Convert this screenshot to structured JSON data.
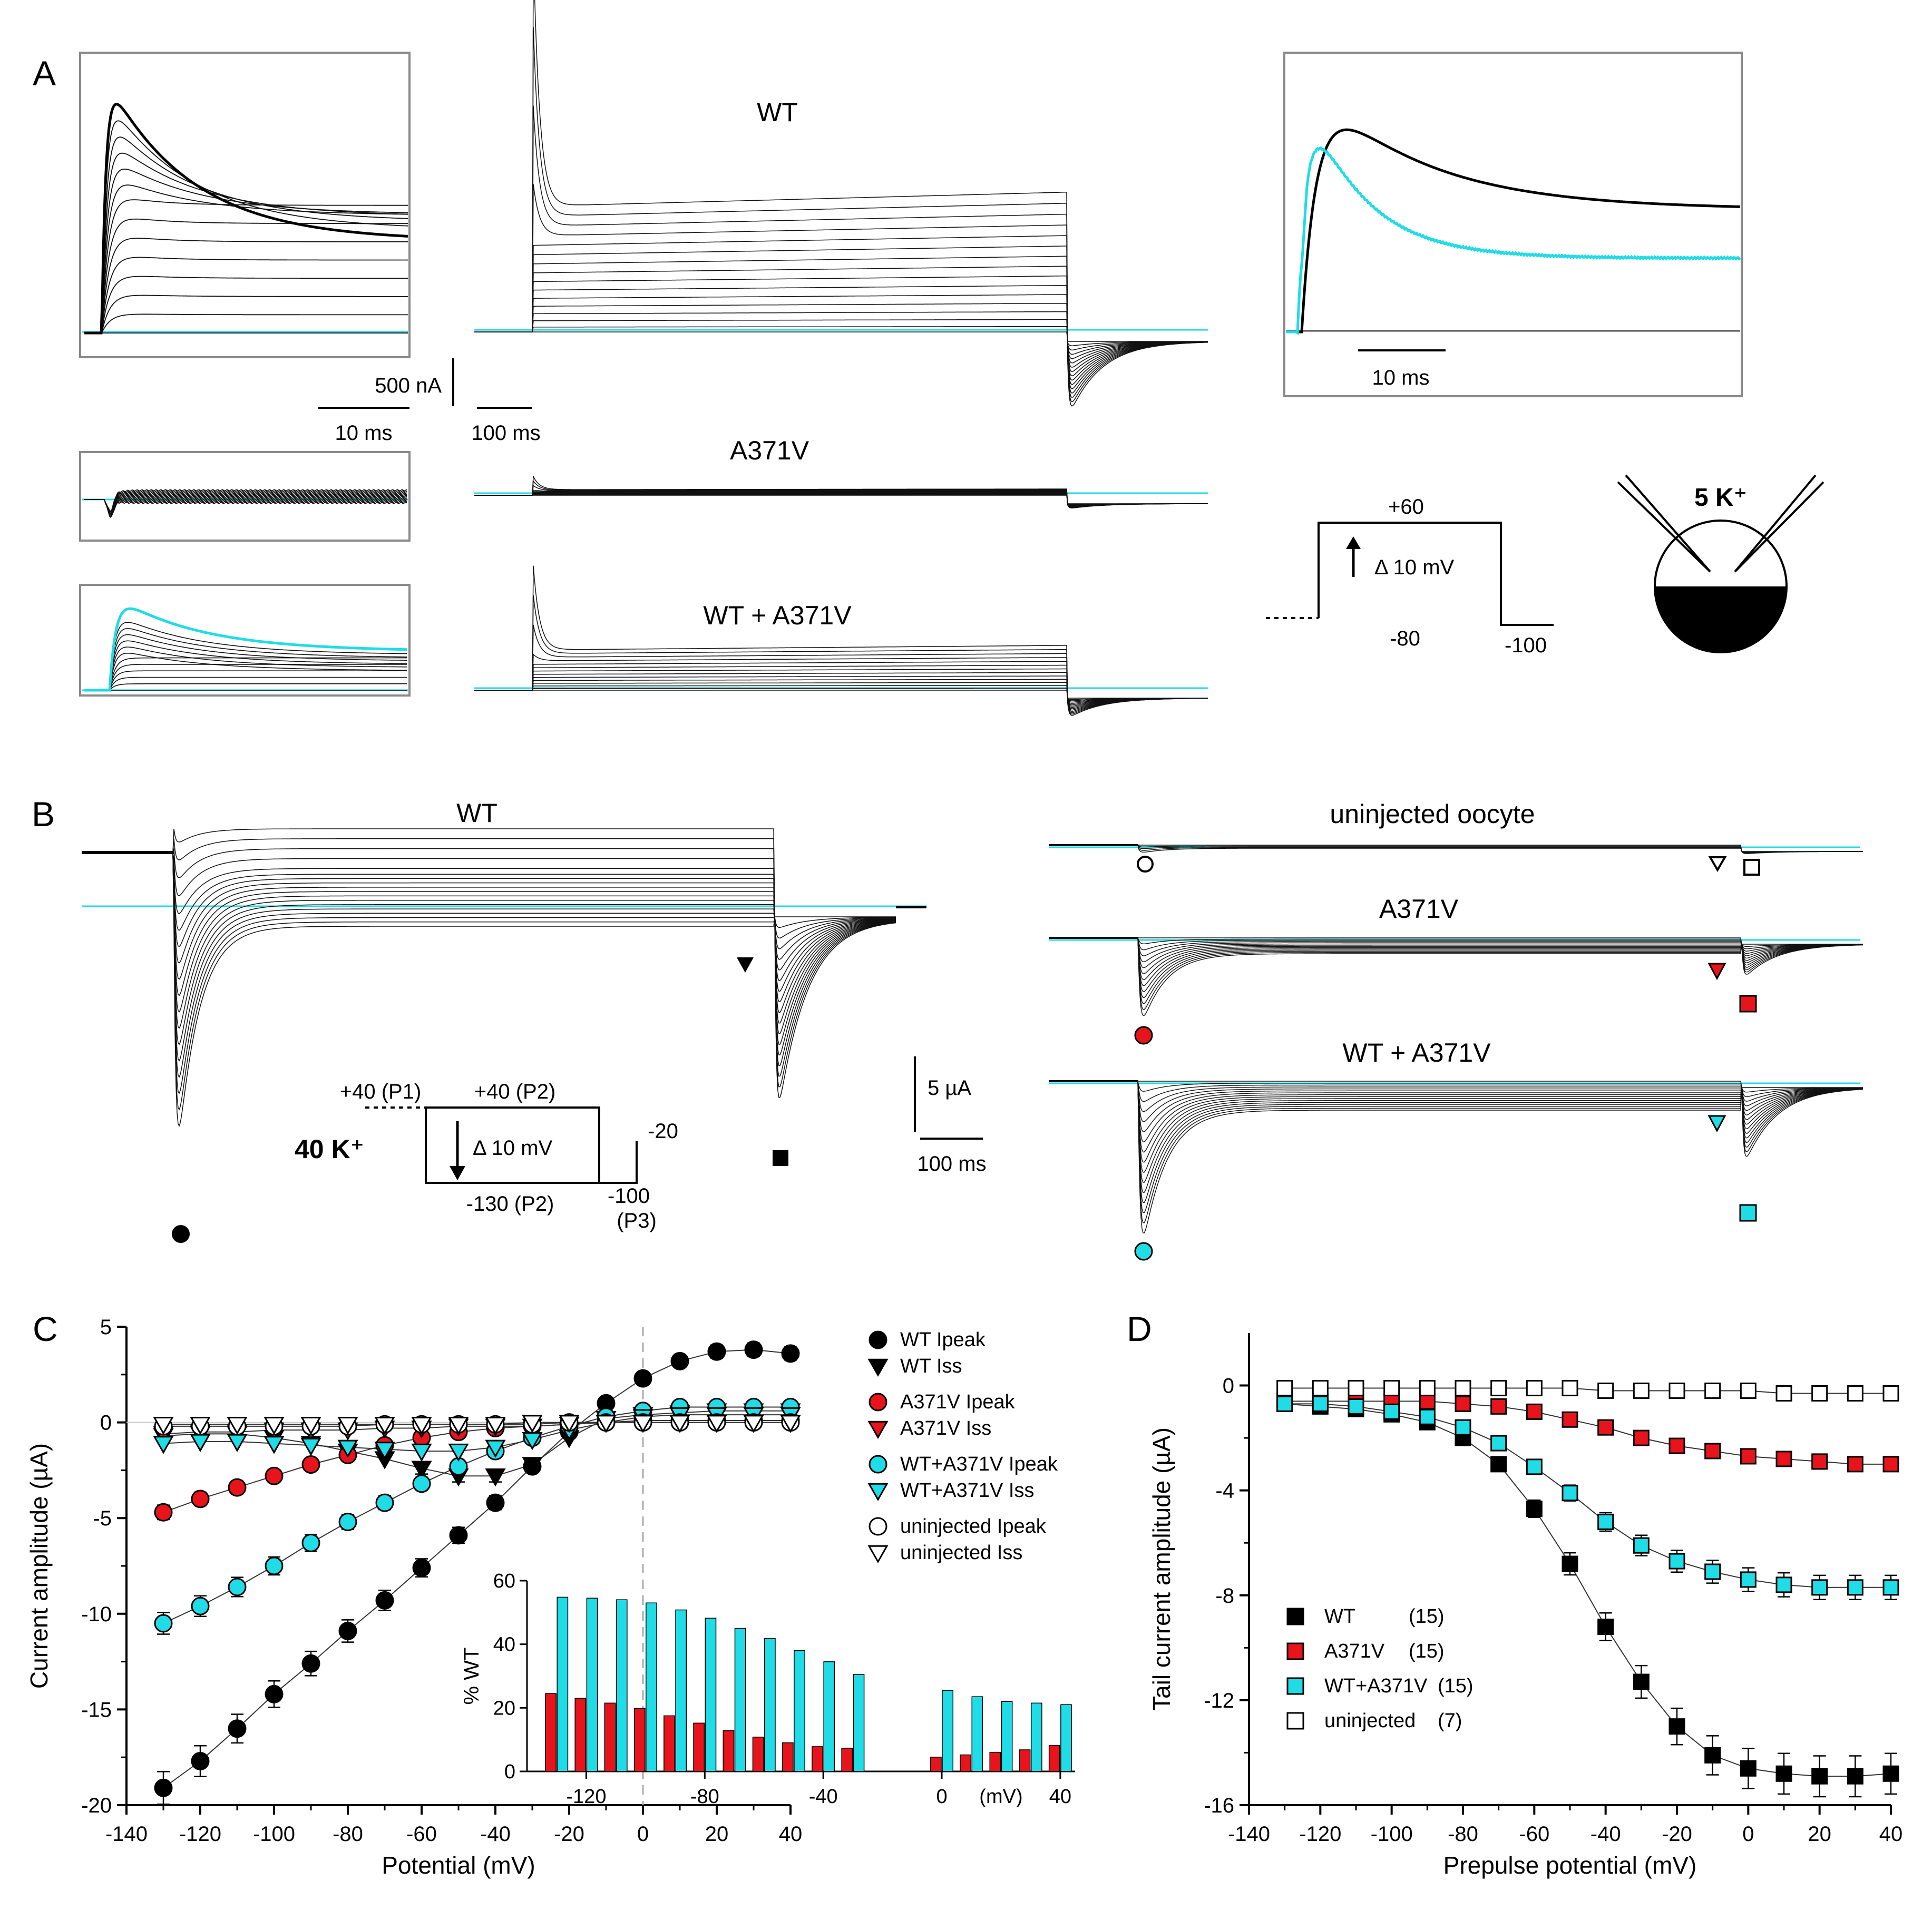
{
  "colors": {
    "wt": "#000000",
    "a371v": "#e8141b",
    "wt_a371v": "#1fdce6",
    "uninjected": "#ffffff",
    "trace": "#111111",
    "zero": "#1fdce6"
  },
  "panel_labels": {
    "a": "A",
    "b": "B",
    "c": "C",
    "d": "D"
  },
  "panel_a": {
    "title_wt": "WT",
    "title_mut": "A371V",
    "title_het": "WT + A371V",
    "scale_current": "500 nA",
    "scale_fast": "10 ms",
    "scale_slow": "100 ms",
    "inset_scale": "10 ms",
    "protocol": {
      "top": "+60",
      "step": "Δ 10 mV",
      "hold": "-80",
      "tail": "-100"
    },
    "cell_label": "5 K⁺"
  },
  "panel_b": {
    "title_wt": "WT",
    "title_uninj": "uninjected oocyte",
    "title_mut": "A371V",
    "title_het": "WT + A371V",
    "scale_current": "5 µA",
    "scale_time": "100 ms",
    "solution": "40 K⁺",
    "protocol": {
      "p1": "+40 (P1)",
      "p2_top": "+40 (P2)",
      "step": "Δ 10 mV",
      "p2_bottom": "-130 (P2)",
      "p3_top": "-20",
      "p3_bottom": "-100",
      "p3_label": "(P3)"
    }
  },
  "chart_data": [
    {
      "type": "scatter",
      "panel": "C",
      "xlabel": "Potential (mV)",
      "ylabel": "Current amplitude (µA)",
      "xlim": [
        -140,
        40
      ],
      "ylim": [
        -20,
        5
      ],
      "xticks": [
        "-140",
        "-120",
        "-100",
        "-80",
        "-60",
        "-40",
        "-20",
        "0",
        "20",
        "40"
      ],
      "yticks": [
        "5",
        "0",
        "-5",
        "-10",
        "-15",
        "-20"
      ],
      "x": [
        -130,
        -120,
        -110,
        -100,
        -90,
        -80,
        -70,
        -60,
        -50,
        -40,
        -30,
        -20,
        -10,
        0,
        10,
        20,
        30,
        40
      ],
      "series": [
        {
          "name": "WT Ipeak",
          "marker": "circle",
          "color": "#000000",
          "values": [
            -19.1,
            -17.7,
            -16.0,
            -14.2,
            -12.6,
            -10.9,
            -9.3,
            -7.6,
            -5.9,
            -4.2,
            -2.3,
            -0.5,
            1.0,
            2.3,
            3.2,
            3.7,
            3.8,
            3.6
          ]
        },
        {
          "name": "WT Iss",
          "marker": "triangle-down",
          "color": "#000000",
          "values": [
            -0.7,
            -0.6,
            -0.6,
            -0.8,
            -1.1,
            -1.5,
            -1.9,
            -2.4,
            -2.8,
            -2.8,
            -2.2,
            -0.8,
            0.2,
            0.4,
            0.5,
            0.6,
            0.6,
            0.6
          ]
        },
        {
          "name": "A371V Ipeak",
          "marker": "circle",
          "color": "#e8141b",
          "values": [
            -4.7,
            -4.0,
            -3.4,
            -2.8,
            -2.2,
            -1.7,
            -1.2,
            -0.8,
            -0.5,
            -0.3,
            -0.2,
            -0.1,
            0.0,
            0.1,
            0.1,
            0.1,
            0.1,
            0.1
          ]
        },
        {
          "name": "A371V Iss",
          "marker": "triangle-down",
          "color": "#e8141b",
          "values": [
            -0.6,
            -0.5,
            -0.5,
            -0.4,
            -0.4,
            -0.4,
            -0.3,
            -0.3,
            -0.2,
            -0.2,
            -0.2,
            -0.1,
            0.0,
            0.0,
            0.0,
            0.0,
            0.0,
            0.0
          ]
        },
        {
          "name": "WT+A371V Ipeak",
          "marker": "circle",
          "color": "#1fdce6",
          "values": [
            -10.5,
            -9.6,
            -8.6,
            -7.5,
            -6.3,
            -5.2,
            -4.2,
            -3.2,
            -2.3,
            -1.5,
            -0.8,
            -0.2,
            0.3,
            0.6,
            0.8,
            0.8,
            0.8,
            0.8
          ]
        },
        {
          "name": "WT+A371V Iss",
          "marker": "triangle-down",
          "color": "#1fdce6",
          "values": [
            -1.1,
            -1.0,
            -1.0,
            -1.1,
            -1.2,
            -1.3,
            -1.4,
            -1.5,
            -1.5,
            -1.3,
            -0.9,
            -0.4,
            0.0,
            0.3,
            0.4,
            0.4,
            0.4,
            0.4
          ]
        },
        {
          "name": "uninjected Ipeak",
          "marker": "circle-open",
          "color": "#ffffff",
          "values": [
            -0.2,
            -0.2,
            -0.2,
            -0.2,
            -0.2,
            -0.2,
            -0.1,
            -0.1,
            -0.1,
            -0.1,
            -0.1,
            0.0,
            0.0,
            0.0,
            0.0,
            0.0,
            0.0,
            0.0
          ]
        },
        {
          "name": "uninjected Iss",
          "marker": "triangle-open",
          "color": "#ffffff",
          "values": [
            -0.1,
            -0.1,
            -0.1,
            -0.1,
            -0.1,
            -0.1,
            -0.1,
            -0.1,
            -0.1,
            -0.1,
            0.0,
            0.0,
            0.0,
            0.0,
            0.0,
            0.0,
            0.0,
            0.0
          ]
        }
      ],
      "legend_position": "top-right"
    },
    {
      "type": "bar",
      "panel": "C-inset",
      "xlabel": "(mV)",
      "ylabel": "% WT",
      "xlim": [
        -140,
        45
      ],
      "ylim": [
        0,
        60
      ],
      "xticks": [
        "-120",
        "-80",
        "-40",
        "0",
        "40"
      ],
      "yticks": [
        "0",
        "20",
        "40",
        "60"
      ],
      "x": [
        -130,
        -120,
        -110,
        -100,
        -90,
        -80,
        -70,
        -60,
        -50,
        -40,
        -30,
        0,
        10,
        20,
        30,
        40
      ],
      "series": [
        {
          "name": "A371V",
          "color": "#e8141b",
          "values": [
            24.5,
            23.0,
            21.5,
            19.8,
            17.5,
            15.2,
            12.8,
            10.8,
            9.0,
            7.8,
            7.3,
            4.5,
            5.2,
            6.0,
            6.8,
            8.2
          ]
        },
        {
          "name": "WT+A371V",
          "color": "#1fdce6",
          "values": [
            54.8,
            54.5,
            54.0,
            53.0,
            50.8,
            48.2,
            45.0,
            41.8,
            38.0,
            34.5,
            30.5,
            25.5,
            23.5,
            22.0,
            21.5,
            21.0
          ]
        }
      ]
    },
    {
      "type": "scatter",
      "panel": "D",
      "xlabel": "Prepulse potential (mV)",
      "ylabel": "Tail current amplitude (µA)",
      "xlim": [
        -140,
        40
      ],
      "ylim": [
        -16,
        2
      ],
      "xticks": [
        "-140",
        "-120",
        "-100",
        "-80",
        "-60",
        "-40",
        "-20",
        "0",
        "20",
        "40"
      ],
      "yticks": [
        "0",
        "-4",
        "-8",
        "-12",
        "-16"
      ],
      "x": [
        -130,
        -120,
        -110,
        -100,
        -90,
        -80,
        -70,
        -60,
        -50,
        -40,
        -30,
        -20,
        -10,
        0,
        10,
        20,
        30,
        40
      ],
      "series": [
        {
          "name": "WT",
          "n": "(15)",
          "marker": "square",
          "color": "#000000",
          "values": [
            -0.7,
            -0.8,
            -0.9,
            -1.1,
            -1.4,
            -2.0,
            -3.0,
            -4.7,
            -6.8,
            -9.2,
            -11.3,
            -13.0,
            -14.1,
            -14.6,
            -14.8,
            -14.9,
            -14.9,
            -14.8
          ]
        },
        {
          "name": "A371V",
          "n": "(15)",
          "marker": "square",
          "color": "#e8141b",
          "values": [
            -0.6,
            -0.6,
            -0.6,
            -0.6,
            -0.6,
            -0.7,
            -0.8,
            -1.0,
            -1.3,
            -1.6,
            -2.0,
            -2.3,
            -2.5,
            -2.7,
            -2.8,
            -2.9,
            -3.0,
            -3.0
          ]
        },
        {
          "name": "WT+A371V",
          "n": "(15)",
          "marker": "square",
          "color": "#1fdce6",
          "values": [
            -0.7,
            -0.7,
            -0.8,
            -1.0,
            -1.2,
            -1.6,
            -2.2,
            -3.1,
            -4.1,
            -5.2,
            -6.1,
            -6.7,
            -7.1,
            -7.4,
            -7.6,
            -7.7,
            -7.7,
            -7.7
          ]
        },
        {
          "name": "uninjected",
          "n": "(7)",
          "marker": "square-open",
          "color": "#ffffff",
          "values": [
            -0.1,
            -0.1,
            -0.1,
            -0.1,
            -0.1,
            -0.1,
            -0.1,
            -0.1,
            -0.1,
            -0.2,
            -0.2,
            -0.2,
            -0.2,
            -0.2,
            -0.3,
            -0.3,
            -0.3,
            -0.3
          ]
        }
      ],
      "legend_position": "bottom-left"
    }
  ]
}
